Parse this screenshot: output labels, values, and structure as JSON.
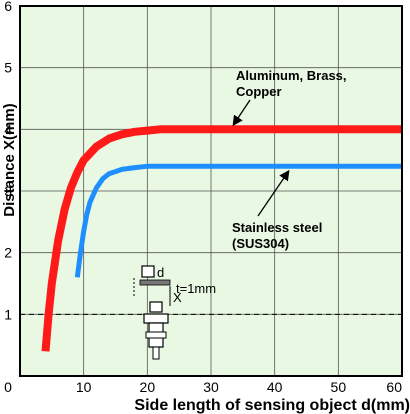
{
  "chart_data": {
    "type": "line",
    "xlabel": "Side length of sensing object d(mm)",
    "ylabel": "Distance X(mm)",
    "xlim": [
      0,
      60
    ],
    "ylim": [
      0,
      6
    ],
    "x_ticks": [
      "0",
      "10",
      "20",
      "30",
      "40",
      "50",
      "60"
    ],
    "y_ticks": [
      "1",
      "2",
      "3",
      "4",
      "5",
      "6"
    ],
    "grid": true,
    "background": "#e8f8e2",
    "series": [
      {
        "name_lines": [
          "Aluminum, Brass,",
          "Copper"
        ],
        "color": "#ff1a1a",
        "points": [
          [
            4,
            0.4
          ],
          [
            4.5,
            1.0
          ],
          [
            5,
            1.5
          ],
          [
            6,
            2.2
          ],
          [
            7,
            2.7
          ],
          [
            8,
            3.05
          ],
          [
            9,
            3.3
          ],
          [
            10,
            3.5
          ],
          [
            12,
            3.72
          ],
          [
            14,
            3.85
          ],
          [
            16,
            3.92
          ],
          [
            18,
            3.96
          ],
          [
            20,
            3.98
          ],
          [
            22,
            4.0
          ],
          [
            24,
            4.0
          ],
          [
            30,
            4.0
          ],
          [
            40,
            4.0
          ],
          [
            50,
            4.0
          ],
          [
            60,
            4.0
          ]
        ]
      },
      {
        "name_lines": [
          "Stainless steel",
          "(SUS304)"
        ],
        "color": "#1f8fff",
        "points": [
          [
            9,
            1.6
          ],
          [
            9.5,
            2.0
          ],
          [
            10,
            2.35
          ],
          [
            10.5,
            2.62
          ],
          [
            11,
            2.82
          ],
          [
            12,
            3.05
          ],
          [
            13,
            3.2
          ],
          [
            14,
            3.28
          ],
          [
            16,
            3.35
          ],
          [
            18,
            3.38
          ],
          [
            20,
            3.4
          ],
          [
            25,
            3.4
          ],
          [
            30,
            3.4
          ],
          [
            40,
            3.4
          ],
          [
            50,
            3.4
          ],
          [
            60,
            3.4
          ]
        ]
      }
    ],
    "reference_line": {
      "y": 1,
      "style": "dashed"
    },
    "inset": {
      "d_label": "d",
      "t_label": "t=1mm",
      "x_label": "X"
    }
  }
}
